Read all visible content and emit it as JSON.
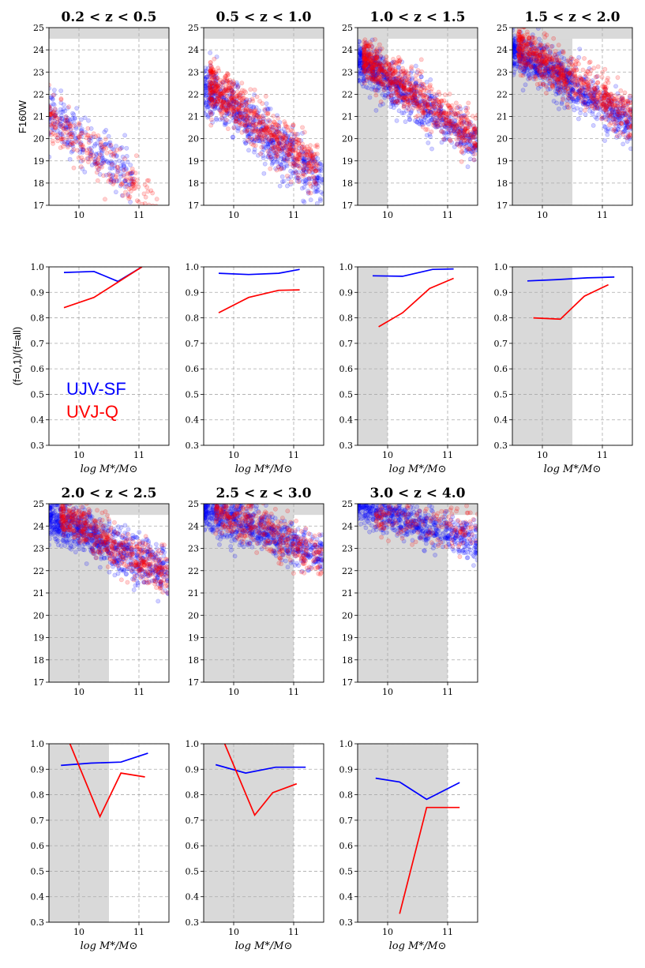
{
  "figure": {
    "mag_ylabel": "F160W",
    "frac_ylabel": "(f=0,1)/(f=all)",
    "xlabel": "log M*/M⊙",
    "legend": [
      {
        "label": "UJV-SF",
        "color": "#0000ff"
      },
      {
        "label": "UVJ-Q",
        "color": "#ff0000"
      }
    ],
    "colors": {
      "sf": "#0000ff",
      "q": "#ff0000",
      "shade": "#d9d9d9",
      "grid": "#aaaaaa"
    }
  },
  "chart_data": [
    {
      "type": "scatter",
      "panel": "mag",
      "title": "0.2 < z < 0.5",
      "xlim": [
        9.5,
        11.5
      ],
      "ylim": [
        17,
        25
      ],
      "xticks": [
        10,
        11
      ],
      "yticks": [
        17,
        18,
        19,
        20,
        21,
        22,
        23,
        24,
        25
      ],
      "mag_limit": 24.5,
      "mass_shade_upper": null,
      "sf_trend": {
        "center": 10.0,
        "intercept": 20.1,
        "slope": -2.0,
        "n": 260,
        "xmin": 9.5,
        "xmax": 10.9,
        "scatter": 0.55
      },
      "q_trend": {
        "center": 10.6,
        "intercept": 18.5,
        "slope": -2.2,
        "n": 230,
        "xmin": 9.5,
        "xmax": 11.3,
        "scatter": 0.55
      }
    },
    {
      "type": "scatter",
      "panel": "mag",
      "title": "0.5 < z < 1.0",
      "xlim": [
        9.5,
        11.5
      ],
      "ylim": [
        17,
        25
      ],
      "xticks": [
        10,
        11
      ],
      "yticks": [
        17,
        18,
        19,
        20,
        21,
        22,
        23,
        24,
        25
      ],
      "mag_limit": 24.5,
      "mass_shade_upper": null,
      "sf_trend": {
        "center": 10.0,
        "intercept": 21.2,
        "slope": -2.1,
        "n": 700,
        "xmin": 9.5,
        "xmax": 11.5,
        "scatter": 0.6
      },
      "q_trend": {
        "center": 10.5,
        "intercept": 20.5,
        "slope": -2.2,
        "n": 650,
        "xmin": 9.6,
        "xmax": 11.4,
        "scatter": 0.55
      }
    },
    {
      "type": "scatter",
      "panel": "mag",
      "title": "1.0 < z < 1.5",
      "xlim": [
        9.5,
        11.5
      ],
      "ylim": [
        17,
        25
      ],
      "xticks": [
        10,
        11
      ],
      "yticks": [
        17,
        18,
        19,
        20,
        21,
        22,
        23,
        24,
        25
      ],
      "mag_limit": 24.5,
      "mass_shade_upper": 10.0,
      "sf_trend": {
        "center": 10.0,
        "intercept": 22.6,
        "slope": -1.9,
        "n": 800,
        "xmin": 9.5,
        "xmax": 11.5,
        "scatter": 0.5
      },
      "q_trend": {
        "center": 10.5,
        "intercept": 21.9,
        "slope": -1.9,
        "n": 700,
        "xmin": 9.6,
        "xmax": 11.5,
        "scatter": 0.5
      }
    },
    {
      "type": "scatter",
      "panel": "mag",
      "title": "1.5 < z < 2.0",
      "xlim": [
        9.5,
        11.5
      ],
      "ylim": [
        17,
        25
      ],
      "xticks": [
        10,
        11
      ],
      "yticks": [
        17,
        18,
        19,
        20,
        21,
        22,
        23,
        24,
        25
      ],
      "mag_limit": 24.5,
      "mass_shade_upper": 10.5,
      "sf_trend": {
        "center": 10.0,
        "intercept": 23.2,
        "slope": -1.7,
        "n": 850,
        "xmin": 9.5,
        "xmax": 11.5,
        "scatter": 0.5
      },
      "q_trend": {
        "center": 10.6,
        "intercept": 22.5,
        "slope": -1.7,
        "n": 650,
        "xmin": 9.6,
        "xmax": 11.5,
        "scatter": 0.5
      }
    },
    {
      "type": "line",
      "panel": "frac",
      "xlim": [
        9.5,
        11.5
      ],
      "ylim": [
        0.3,
        1.0
      ],
      "xticks": [
        10,
        11
      ],
      "yticks": [
        0.3,
        0.4,
        0.5,
        0.6,
        0.7,
        0.8,
        0.9,
        1.0
      ],
      "mass_shade_upper": null,
      "series": [
        {
          "name": "UJV-SF",
          "x": [
            9.75,
            10.25,
            10.65,
            11.05
          ],
          "values": [
            0.978,
            0.982,
            0.943,
            1.0
          ]
        },
        {
          "name": "UVJ-Q",
          "x": [
            9.75,
            10.25,
            10.65,
            11.05
          ],
          "values": [
            0.84,
            0.88,
            0.94,
            1.0
          ]
        }
      ]
    },
    {
      "type": "line",
      "panel": "frac",
      "xlim": [
        9.5,
        11.5
      ],
      "ylim": [
        0.3,
        1.0
      ],
      "xticks": [
        10,
        11
      ],
      "yticks": [
        0.3,
        0.4,
        0.5,
        0.6,
        0.7,
        0.8,
        0.9,
        1.0
      ],
      "mass_shade_upper": null,
      "series": [
        {
          "name": "UJV-SF",
          "x": [
            9.75,
            10.25,
            10.75,
            11.1
          ],
          "values": [
            0.975,
            0.97,
            0.975,
            0.99
          ]
        },
        {
          "name": "UVJ-Q",
          "x": [
            9.75,
            10.25,
            10.75,
            11.1
          ],
          "values": [
            0.82,
            0.88,
            0.908,
            0.91
          ]
        }
      ]
    },
    {
      "type": "line",
      "panel": "frac",
      "xlim": [
        9.5,
        11.5
      ],
      "ylim": [
        0.3,
        1.0
      ],
      "xticks": [
        10,
        11
      ],
      "yticks": [
        0.3,
        0.4,
        0.5,
        0.6,
        0.7,
        0.8,
        0.9,
        1.0
      ],
      "mass_shade_upper": 10.0,
      "series": [
        {
          "name": "UJV-SF",
          "x": [
            9.75,
            10.25,
            10.75,
            11.1
          ],
          "values": [
            0.965,
            0.963,
            0.99,
            0.992
          ]
        },
        {
          "name": "UVJ-Q",
          "x": [
            9.85,
            10.25,
            10.7,
            11.1
          ],
          "values": [
            0.765,
            0.82,
            0.915,
            0.955
          ]
        }
      ]
    },
    {
      "type": "line",
      "panel": "frac",
      "xlim": [
        9.5,
        11.5
      ],
      "ylim": [
        0.3,
        1.0
      ],
      "xticks": [
        10,
        11
      ],
      "yticks": [
        0.3,
        0.4,
        0.5,
        0.6,
        0.7,
        0.8,
        0.9,
        1.0
      ],
      "mass_shade_upper": 10.5,
      "series": [
        {
          "name": "UJV-SF",
          "x": [
            9.75,
            10.25,
            10.75,
            11.2
          ],
          "values": [
            0.945,
            0.95,
            0.957,
            0.96
          ]
        },
        {
          "name": "UVJ-Q",
          "x": [
            9.85,
            10.3,
            10.7,
            11.1
          ],
          "values": [
            0.8,
            0.795,
            0.885,
            0.93
          ]
        }
      ]
    },
    {
      "type": "scatter",
      "panel": "mag",
      "title": "2.0 < z < 2.5",
      "xlim": [
        9.5,
        11.5
      ],
      "ylim": [
        17,
        25
      ],
      "xticks": [
        10,
        11
      ],
      "yticks": [
        17,
        18,
        19,
        20,
        21,
        22,
        23,
        24,
        25
      ],
      "mag_limit": 24.5,
      "mass_shade_upper": 10.5,
      "sf_trend": {
        "center": 10.0,
        "intercept": 23.8,
        "slope": -1.3,
        "n": 850,
        "xmin": 9.5,
        "xmax": 11.5,
        "scatter": 0.5
      },
      "q_trend": {
        "center": 10.7,
        "intercept": 23.0,
        "slope": -1.6,
        "n": 500,
        "xmin": 9.7,
        "xmax": 11.5,
        "scatter": 0.5
      }
    },
    {
      "type": "scatter",
      "panel": "mag",
      "title": "2.5 < z < 3.0",
      "xlim": [
        9.5,
        11.5
      ],
      "ylim": [
        17,
        25
      ],
      "xticks": [
        10,
        11
      ],
      "yticks": [
        17,
        18,
        19,
        20,
        21,
        22,
        23,
        24,
        25
      ],
      "mag_limit": 24.5,
      "mass_shade_upper": 11.0,
      "sf_trend": {
        "center": 10.0,
        "intercept": 24.2,
        "slope": -1.0,
        "n": 750,
        "xmin": 9.5,
        "xmax": 11.5,
        "scatter": 0.45
      },
      "q_trend": {
        "center": 10.7,
        "intercept": 23.6,
        "slope": -1.2,
        "n": 380,
        "xmin": 9.7,
        "xmax": 11.5,
        "scatter": 0.5
      }
    },
    {
      "type": "scatter",
      "panel": "mag",
      "title": "3.0 < z < 4.0",
      "xlim": [
        9.5,
        11.5
      ],
      "ylim": [
        17,
        25
      ],
      "xticks": [
        10,
        11
      ],
      "yticks": [
        17,
        18,
        19,
        20,
        21,
        22,
        23,
        24,
        25
      ],
      "mag_limit": 24.5,
      "mass_shade_upper": 11.0,
      "sf_trend": {
        "center": 10.0,
        "intercept": 24.5,
        "slope": -0.8,
        "n": 700,
        "xmin": 9.5,
        "xmax": 11.5,
        "scatter": 0.4
      },
      "q_trend": {
        "center": 10.8,
        "intercept": 24.0,
        "slope": -0.6,
        "n": 180,
        "xmin": 9.8,
        "xmax": 11.5,
        "scatter": 0.5
      }
    },
    {
      "type": "line",
      "panel": "frac",
      "xlim": [
        9.5,
        11.5
      ],
      "ylim": [
        0.3,
        1.0
      ],
      "xticks": [
        10,
        11
      ],
      "yticks": [
        0.3,
        0.4,
        0.5,
        0.6,
        0.7,
        0.8,
        0.9,
        1.0
      ],
      "mass_shade_upper": 10.5,
      "series": [
        {
          "name": "UJV-SF",
          "x": [
            9.7,
            10.2,
            10.7,
            11.15
          ],
          "values": [
            0.915,
            0.924,
            0.928,
            0.963
          ]
        },
        {
          "name": "UVJ-Q",
          "x": [
            9.85,
            10.35,
            10.7,
            11.1
          ],
          "values": [
            1.0,
            0.714,
            0.885,
            0.87
          ]
        }
      ]
    },
    {
      "type": "line",
      "panel": "frac",
      "xlim": [
        9.5,
        11.5
      ],
      "ylim": [
        0.3,
        1.0
      ],
      "xticks": [
        10,
        11
      ],
      "yticks": [
        0.3,
        0.4,
        0.5,
        0.6,
        0.7,
        0.8,
        0.9,
        1.0
      ],
      "mass_shade_upper": 11.0,
      "series": [
        {
          "name": "UJV-SF",
          "x": [
            9.7,
            10.2,
            10.7,
            11.2
          ],
          "values": [
            0.918,
            0.885,
            0.908,
            0.908
          ]
        },
        {
          "name": "UVJ-Q",
          "x": [
            9.85,
            10.35,
            10.65,
            11.05
          ],
          "values": [
            1.0,
            0.72,
            0.808,
            0.843
          ]
        }
      ]
    },
    {
      "type": "line",
      "panel": "frac",
      "xlim": [
        9.5,
        11.5
      ],
      "ylim": [
        0.3,
        1.0
      ],
      "xticks": [
        10,
        11
      ],
      "yticks": [
        0.3,
        0.4,
        0.5,
        0.6,
        0.7,
        0.8,
        0.9,
        1.0
      ],
      "mass_shade_upper": 11.0,
      "series": [
        {
          "name": "UJV-SF",
          "x": [
            9.8,
            10.2,
            10.65,
            11.2
          ],
          "values": [
            0.865,
            0.85,
            0.782,
            0.848
          ]
        },
        {
          "name": "UVJ-Q",
          "x": [
            10.2,
            10.65,
            11.2
          ],
          "values": [
            0.333,
            0.75,
            0.75
          ]
        }
      ]
    }
  ]
}
